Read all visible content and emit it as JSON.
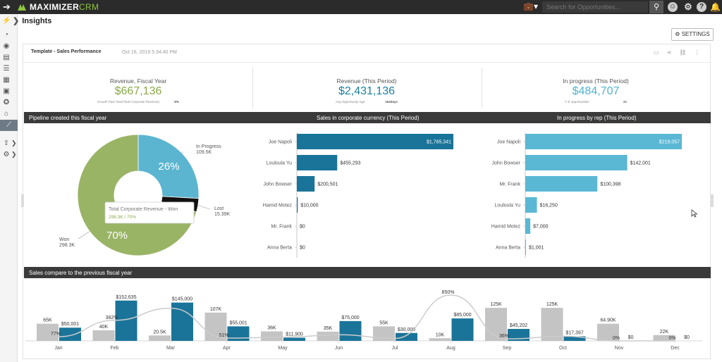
{
  "topbar": {
    "app_name": "MAXIMIZER",
    "app_name_suffix": "CRM",
    "search_placeholder": "Search for Opportunities..."
  },
  "breadcrumb": {
    "title": "Insights"
  },
  "settings_label": "SETTINGS",
  "dashboard": {
    "template_title": "Template - Sales Performance",
    "date": "Oct 16, 2019 5:34:40 PM"
  },
  "kpis": [
    {
      "title": "Revenue, Fiscal Year",
      "value": "$667,136",
      "sub_label": "Growth Past Year(Total Corporate Revenue)",
      "sub_value": "-5%",
      "color": "#8aab4a"
    },
    {
      "title": "Revenue (This Period)",
      "value": "$2,431,136",
      "sub_label": "Avg Opportunity Age",
      "sub_value": "164days",
      "color": "#1a7fa0"
    },
    {
      "title": "In progress (This Period)",
      "value": "$484,707",
      "sub_label": "# of opportunities",
      "sub_value": "21",
      "color": "#4fb3cf"
    }
  ],
  "sections": {
    "pipeline": "Pipeline created this fiscal year",
    "corporate": "Sales in corporate currency (This Period)",
    "by_rep": "In progress by rep (This Period)",
    "compare": "Sales compare to the previous fiscal year"
  },
  "chart_data": [
    {
      "type": "pie",
      "title": "Pipeline created this fiscal year",
      "slices": [
        {
          "label": "In Progress",
          "value_label": "109.5K",
          "value": 109.5,
          "color": "#5bb5d0"
        },
        {
          "label": "Lost",
          "value_label": "15.39K",
          "value": 15.39,
          "color": "#111111"
        },
        {
          "label": "Won",
          "value_label": "298.3K",
          "value": 298.3,
          "color": "#9ab466"
        }
      ],
      "slice_pct_label": "26%",
      "won_pct_label": "70%",
      "tooltip": {
        "title": "Total Corporate Revenue  -  Won",
        "value": "298.3K / 70%"
      }
    },
    {
      "type": "bar",
      "orientation": "horizontal",
      "title": "Sales in corporate currency (This Period)",
      "categories": [
        "Joe Napoli",
        "Louloula Yu",
        "John Bowser",
        "Hamid Motez",
        "Mr. Frank",
        "Anna Berta"
      ],
      "values": [
        1765341,
        455293,
        200501,
        10000,
        0,
        0
      ],
      "labels": [
        "$1,765,341",
        "$455,293",
        "$200,501",
        "$10,000",
        "$0",
        "$0"
      ],
      "color": "#1a7499",
      "xlim": [
        0,
        1765341
      ]
    },
    {
      "type": "bar",
      "orientation": "horizontal",
      "title": "In progress by rep (This Period)",
      "categories": [
        "Joe Napoli",
        "John Bowser",
        "Mr. Frank",
        "Louloula Yu",
        "Hamid Motez",
        "Anna Berta"
      ],
      "values": [
        218057,
        142001,
        100398,
        16250,
        7000,
        1001
      ],
      "labels": [
        "$218,057",
        "$142,001",
        "$100,398",
        "$16,250",
        "$7,000",
        "$1,001"
      ],
      "color": "#5ab8d4",
      "xlim": [
        0,
        218057
      ]
    },
    {
      "type": "bar",
      "title": "Sales compare to the previous fiscal year",
      "categories": [
        "Jan",
        "Feb",
        "Mar",
        "Apr",
        "May",
        "Jun",
        "Jul",
        "Aug",
        "Sep",
        "Oct",
        "Nov",
        "Dec"
      ],
      "series": [
        {
          "values": [
            65000,
            40000,
            20500,
            107000,
            36000,
            35000,
            55000,
            10000,
            125000,
            125000,
            64900,
            22000
          ],
          "labels": [
            "65K",
            "40K",
            "20.5K",
            "107K",
            "36K",
            "35K",
            "55K",
            "10K",
            "125K",
            "125K",
            "64.90K",
            "22K"
          ],
          "color": "#c4c4c4"
        },
        {
          "values": [
            50001,
            152635,
            145000,
            55001,
            11900,
            75000,
            30000,
            85000,
            45202,
            17397,
            0,
            0
          ],
          "labels": [
            "$50,001",
            "$152,635",
            "$145,000",
            "$55,001",
            "$11,900",
            "$75,000",
            "$30,000",
            "$85,000",
            "$45,202",
            "$17,397",
            "$0",
            "$0"
          ],
          "color": "#1a7499"
        }
      ],
      "growth": [
        77,
        382,
        607,
        51,
        67,
        114,
        45,
        850,
        36,
        86,
        0,
        0
      ],
      "growth_labels": [
        "77%",
        "382%",
        "",
        "51%",
        "",
        "",
        "",
        "850%",
        "36%",
        "",
        "0%",
        "0%"
      ],
      "ylim": [
        0,
        160000
      ]
    }
  ]
}
